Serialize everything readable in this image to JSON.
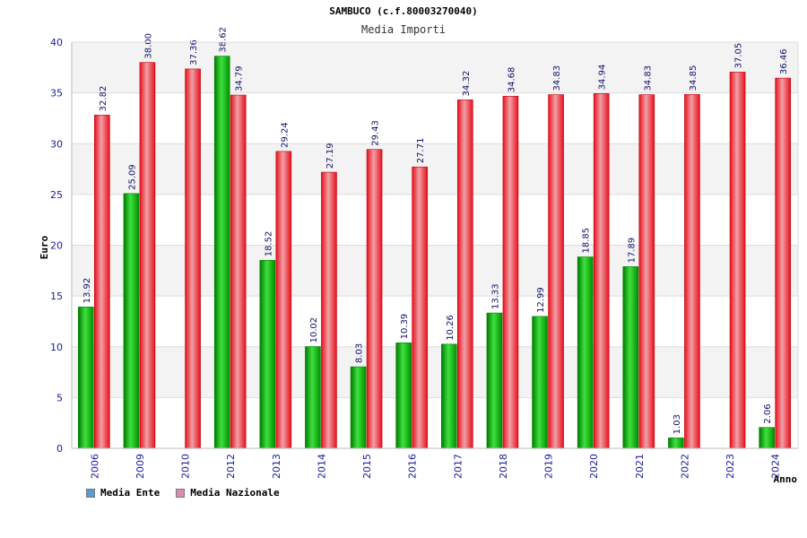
{
  "chart_data": {
    "type": "bar",
    "title": "SAMBUCO (c.f.80003270040)",
    "subtitle": "Media Importi",
    "ylabel": "Euro",
    "xlabel": "Anno",
    "ylim": [
      0,
      40
    ],
    "yticks": [
      0,
      5,
      10,
      15,
      20,
      25,
      30,
      35,
      40
    ],
    "grid": "horizontal",
    "categories": [
      "2006",
      "2009",
      "2010",
      "2012",
      "2013",
      "2014",
      "2015",
      "2016",
      "2017",
      "2018",
      "2019",
      "2020",
      "2021",
      "2022",
      "2023",
      "2024"
    ],
    "series": [
      {
        "name": "Media Ente",
        "color": "#00c000",
        "legend_color": "#5b9bd5",
        "values": [
          13.92,
          25.09,
          null,
          38.62,
          18.52,
          10.02,
          8.03,
          10.39,
          10.26,
          13.33,
          12.99,
          18.85,
          17.89,
          1.03,
          null,
          2.06
        ],
        "labels": [
          "13.92",
          "25.09",
          null,
          "38.62",
          "18.52",
          "10.02",
          "8.03",
          "10.39",
          "10.26",
          "13.33",
          "12.99",
          "18.85",
          "17.89",
          "1.03",
          null,
          "2.06"
        ]
      },
      {
        "name": "Media Nazionale",
        "color": "#e8101a",
        "legend_color": "#d98cb0",
        "values": [
          32.82,
          38.0,
          37.36,
          34.79,
          29.24,
          27.19,
          29.43,
          27.71,
          34.32,
          34.68,
          34.83,
          34.94,
          34.83,
          34.85,
          37.05,
          36.46
        ],
        "labels": [
          "32.82",
          "38.00",
          "37.36",
          "34.79",
          "29.24",
          "27.19",
          "29.43",
          "27.71",
          "34.32",
          "34.68",
          "34.83",
          "34.94",
          "34.83",
          "34.85",
          "37.05",
          "36.46"
        ]
      }
    ],
    "legend_position": "bottom-left"
  }
}
